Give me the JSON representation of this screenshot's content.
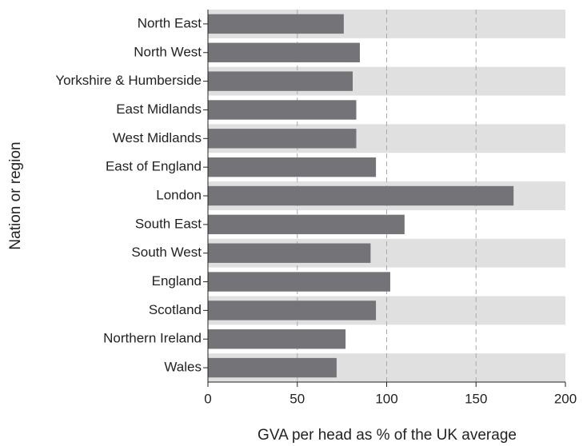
{
  "chart_data": {
    "type": "barh",
    "x_label": "GVA per head as % of the UK average",
    "y_label": "Nation or region",
    "categories": [
      "North East",
      "North West",
      "Yorkshire & Humberside",
      "East Midlands",
      "West Midlands",
      "East of England",
      "London",
      "South East",
      "South West",
      "England",
      "Scotland",
      "Northern Ireland",
      "Wales"
    ],
    "values": [
      76,
      85,
      81,
      83,
      83,
      94,
      171,
      110,
      91,
      102,
      94,
      77,
      72
    ],
    "color": "#747478",
    "xlim": [
      0,
      200
    ],
    "xticks": [
      0,
      50,
      100,
      150,
      200
    ],
    "grid": true
  }
}
